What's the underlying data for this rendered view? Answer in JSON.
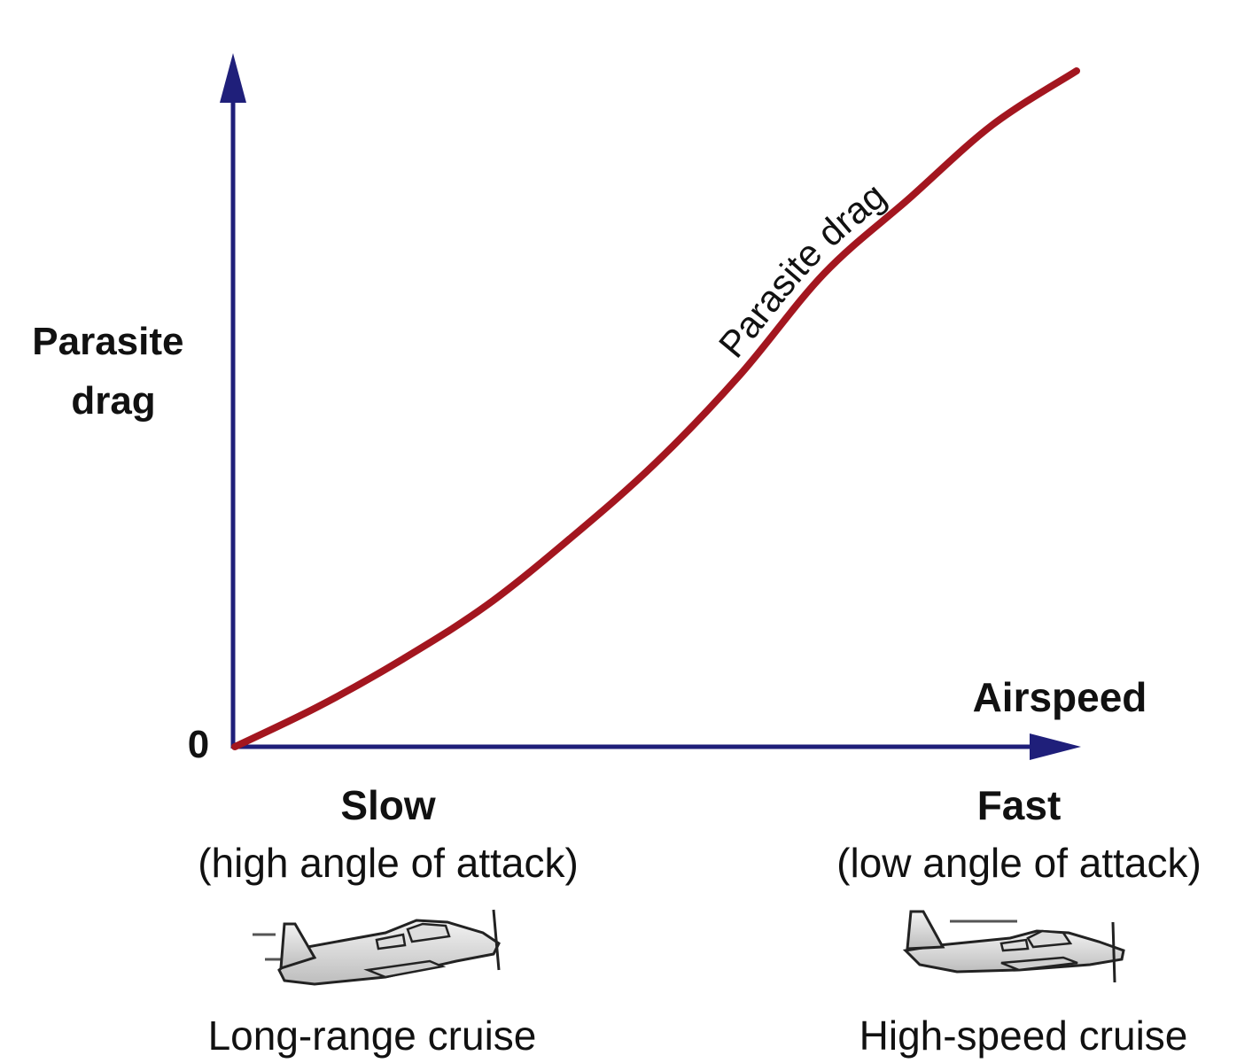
{
  "chart_data": {
    "type": "line",
    "ylabel_lines": [
      "Parasite",
      "drag"
    ],
    "xlabel": "Airspeed",
    "origin_label": "0",
    "series": [
      {
        "name": "Parasite drag",
        "color": "#a3161f",
        "x": [
          0,
          0.1,
          0.2,
          0.3,
          0.4,
          0.5,
          0.6,
          0.7,
          0.8,
          0.9,
          1.0
        ],
        "y": [
          0,
          0.06,
          0.13,
          0.21,
          0.31,
          0.42,
          0.55,
          0.7,
          0.81,
          0.92,
          1.0
        ]
      }
    ],
    "xlim": [
      0,
      1.0
    ],
    "ylim": [
      0,
      1.0
    ],
    "axis_color": "#1f1f7a",
    "grid": false,
    "annotations": {
      "slow": {
        "title": "Slow",
        "subtitle": "(high angle of attack)",
        "caption": "Long-range cruise",
        "icon": "airplane-nose-up-icon"
      },
      "fast": {
        "title": "Fast",
        "subtitle": "(low angle of attack)",
        "caption": "High-speed cruise",
        "icon": "airplane-level-icon"
      }
    }
  }
}
